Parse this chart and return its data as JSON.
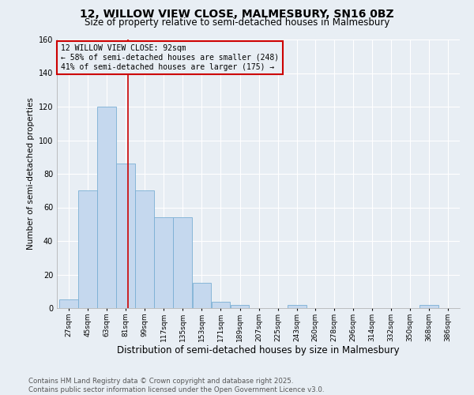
{
  "title1": "12, WILLOW VIEW CLOSE, MALMESBURY, SN16 0BZ",
  "title2": "Size of property relative to semi-detached houses in Malmesbury",
  "xlabel": "Distribution of semi-detached houses by size in Malmesbury",
  "ylabel": "Number of semi-detached properties",
  "footer": "Contains HM Land Registry data © Crown copyright and database right 2025.\nContains public sector information licensed under the Open Government Licence v3.0.",
  "bin_edges": [
    27,
    45,
    63,
    81,
    99,
    117,
    135,
    153,
    171,
    189,
    207,
    225,
    243,
    260,
    278,
    296,
    314,
    332,
    350,
    368,
    386
  ],
  "bar_heights": [
    5,
    70,
    120,
    86,
    70,
    54,
    54,
    15,
    4,
    2,
    0,
    0,
    2,
    0,
    0,
    0,
    0,
    0,
    0,
    2,
    0
  ],
  "bar_color": "#c5d8ee",
  "bar_edge_color": "#7aafd4",
  "property_size": 92,
  "property_label": "12 WILLOW VIEW CLOSE: 92sqm",
  "pct_smaller": 58,
  "n_smaller": 248,
  "pct_larger": 41,
  "n_larger": 175,
  "annotation_box_color": "#cc0000",
  "vline_color": "#cc0000",
  "ylim": [
    0,
    160
  ],
  "yticks": [
    0,
    20,
    40,
    60,
    80,
    100,
    120,
    140,
    160
  ],
  "background_color": "#e8eef4",
  "grid_color": "#ffffff",
  "title1_fontsize": 10,
  "title2_fontsize": 8.5,
  "xlabel_fontsize": 8.5,
  "ylabel_fontsize": 7.5,
  "footer_fontsize": 6.2,
  "tick_fontsize": 6.5,
  "ann_fontsize": 7.0
}
